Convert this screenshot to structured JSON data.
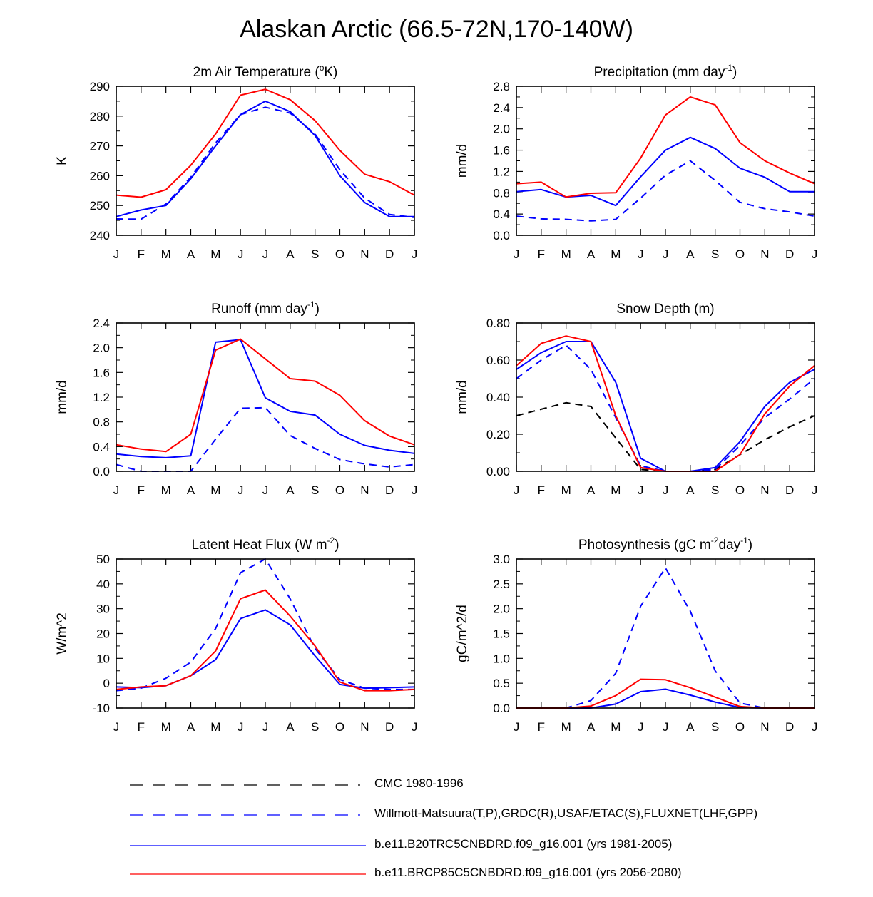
{
  "title": "Alaskan Arctic (66.5-72N,170-140W)",
  "months": [
    "J",
    "F",
    "M",
    "A",
    "M",
    "J",
    "J",
    "A",
    "S",
    "O",
    "N",
    "D",
    "J"
  ],
  "legend": [
    {
      "label": "CMC 1980-1996",
      "color": "#000000",
      "dash": true
    },
    {
      "label": "Willmott-Matsuura(T,P),GRDC(R),USAF/ETAC(S),FLUXNET(LHF,GPP)",
      "color": "#0000ff",
      "dash": true
    },
    {
      "label": "b.e11.B20TRC5CNBDRD.f09_g16.001 (yrs 1981-2005)",
      "color": "#0000ff",
      "dash": false
    },
    {
      "label": "b.e11.BRCP85C5CNBDRD.f09_g16.001 (yrs 2056-2080)",
      "color": "#ff0000",
      "dash": false
    }
  ],
  "chart_data": [
    {
      "type": "line",
      "title_parts": [
        "2m Air Temperature (",
        "o",
        "K)"
      ],
      "ylabel": "K",
      "ylim": [
        240,
        290
      ],
      "yticks": [
        "240",
        "250",
        "260",
        "270",
        "280",
        "290"
      ],
      "series": [
        {
          "name": "Willmott-Matsuura",
          "color": "#0000ff",
          "dash": true,
          "values": [
            245.5,
            245.4,
            250.5,
            259.5,
            271,
            280.5,
            283,
            281,
            274,
            262,
            252.5,
            247,
            246
          ]
        },
        {
          "name": "b.e11.B20TRC5CNBDRD (1981-2005)",
          "color": "#0000ff",
          "dash": false,
          "values": [
            246.3,
            248.5,
            250,
            259,
            270,
            280.5,
            285,
            281.5,
            273.5,
            260,
            251,
            246.3,
            246.3
          ]
        },
        {
          "name": "b.e11.BRCP85C5CNBDRD (2056-2080)",
          "color": "#ff0000",
          "dash": false,
          "values": [
            253.5,
            252.8,
            255.3,
            263.5,
            274,
            287,
            289,
            285.5,
            278.5,
            268.5,
            260.5,
            258,
            253.5
          ]
        }
      ]
    },
    {
      "type": "line",
      "title_parts": [
        "Precipitation (mm day",
        "-1",
        ")"
      ],
      "ylabel": "mm/d",
      "ylim": [
        0,
        2.8
      ],
      "yticks": [
        "0.0",
        "0.4",
        "0.8",
        "1.2",
        "1.6",
        "2.0",
        "2.4",
        "2.8"
      ],
      "series": [
        {
          "name": "Willmott-Matsuura",
          "color": "#0000ff",
          "dash": true,
          "values": [
            0.36,
            0.31,
            0.3,
            0.27,
            0.3,
            0.7,
            1.13,
            1.4,
            1.03,
            0.62,
            0.5,
            0.44,
            0.36
          ]
        },
        {
          "name": "b.e11.B20TRC5CNBDRD (1981-2005)",
          "color": "#0000ff",
          "dash": false,
          "values": [
            0.82,
            0.86,
            0.72,
            0.75,
            0.56,
            1.1,
            1.6,
            1.84,
            1.63,
            1.26,
            1.09,
            0.82,
            0.82
          ]
        },
        {
          "name": "b.e11.BRCP85C5CNBDRD (2056-2080)",
          "color": "#ff0000",
          "dash": false,
          "values": [
            0.97,
            1.0,
            0.72,
            0.79,
            0.8,
            1.45,
            2.26,
            2.6,
            2.45,
            1.74,
            1.4,
            1.17,
            0.97
          ]
        }
      ]
    },
    {
      "type": "line",
      "title_parts": [
        "Runoff (mm day",
        "-1",
        ")"
      ],
      "ylabel": "mm/d",
      "ylim": [
        0,
        2.4
      ],
      "yticks": [
        "0.0",
        "0.4",
        "0.8",
        "1.2",
        "1.6",
        "2.0",
        "2.4"
      ],
      "series": [
        {
          "name": "GRDC",
          "color": "#0000ff",
          "dash": true,
          "values": [
            0.11,
            0.0,
            0.0,
            0.0,
            0.52,
            1.02,
            1.03,
            0.58,
            0.37,
            0.19,
            0.12,
            0.07,
            0.11
          ]
        },
        {
          "name": "b.e11.B20TRC5CNBDRD (1981-2005)",
          "color": "#0000ff",
          "dash": false,
          "values": [
            0.28,
            0.24,
            0.22,
            0.25,
            2.09,
            2.13,
            1.19,
            0.97,
            0.91,
            0.6,
            0.42,
            0.34,
            0.29
          ]
        },
        {
          "name": "b.e11.BRCP85C5CNBDRD (2056-2080)",
          "color": "#ff0000",
          "dash": false,
          "values": [
            0.43,
            0.36,
            0.32,
            0.6,
            1.96,
            2.14,
            1.82,
            1.5,
            1.46,
            1.23,
            0.82,
            0.57,
            0.43
          ]
        }
      ]
    },
    {
      "type": "line",
      "title_parts": [
        "Snow Depth (m)"
      ],
      "ylabel": "mm/d",
      "ylim": [
        0,
        0.8
      ],
      "yticks": [
        "0.00",
        "0.20",
        "0.40",
        "0.60",
        "0.80"
      ],
      "series": [
        {
          "name": "CMC 1980-1996",
          "color": "#000000",
          "dash": true,
          "values": [
            0.3,
            0.335,
            0.37,
            0.35,
            0.18,
            0.01,
            0.0,
            0.0,
            0.01,
            0.09,
            0.17,
            0.24,
            0.3
          ]
        },
        {
          "name": "USAF/ETAC",
          "color": "#0000ff",
          "dash": true,
          "values": [
            0.5,
            0.6,
            0.68,
            0.55,
            0.29,
            0.03,
            0.0,
            0.0,
            0.01,
            0.14,
            0.29,
            0.39,
            0.5
          ]
        },
        {
          "name": "b.e11.B20TRC5CNBDRD (1981-2005)",
          "color": "#0000ff",
          "dash": false,
          "values": [
            0.55,
            0.64,
            0.7,
            0.7,
            0.48,
            0.07,
            0.0,
            0.0,
            0.02,
            0.16,
            0.35,
            0.48,
            0.55
          ]
        },
        {
          "name": "b.e11.BRCP85C5CNBDRD (2056-2080)",
          "color": "#ff0000",
          "dash": false,
          "values": [
            0.57,
            0.69,
            0.73,
            0.7,
            0.3,
            0.02,
            0.0,
            0.0,
            0.0,
            0.09,
            0.31,
            0.46,
            0.57
          ]
        }
      ]
    },
    {
      "type": "line",
      "title_parts": [
        "Latent Heat Flux (W m",
        "-2",
        ")"
      ],
      "ylabel": "W/m^2",
      "ylim": [
        -10,
        50
      ],
      "yticks": [
        "-10",
        "0",
        "10",
        "20",
        "30",
        "40",
        "50"
      ],
      "series": [
        {
          "name": "FLUXNET",
          "color": "#0000ff",
          "dash": true,
          "values": [
            -3,
            -2,
            2,
            8.5,
            22,
            44.5,
            50,
            34,
            14,
            1.5,
            -2,
            -2.5,
            -2.5
          ]
        },
        {
          "name": "b.e11.B20TRC5CNBDRD (1981-2005)",
          "color": "#0000ff",
          "dash": false,
          "values": [
            -1.5,
            -1.8,
            -1,
            3,
            9.5,
            26,
            29.5,
            23.5,
            11,
            -0.5,
            -2,
            -1.8,
            -1.5
          ]
        },
        {
          "name": "b.e11.BRCP85C5CNBDRD (2056-2080)",
          "color": "#ff0000",
          "dash": false,
          "values": [
            -2.5,
            -1.5,
            -1,
            3,
            13,
            34,
            37.5,
            27,
            15,
            0.5,
            -3,
            -3,
            -2.5
          ]
        }
      ]
    },
    {
      "type": "line",
      "title_parts": [
        "Photosynthesis (gC m",
        "-2",
        "day",
        "-1",
        ")"
      ],
      "ylabel": "gC/m^2/d",
      "ylim": [
        0,
        3
      ],
      "yticks": [
        "0.0",
        "0.5",
        "1.0",
        "1.5",
        "2.0",
        "2.5",
        "3.0"
      ],
      "series": [
        {
          "name": "FLUXNET",
          "color": "#0000ff",
          "dash": true,
          "values": [
            0,
            0,
            0,
            0.15,
            0.7,
            2.05,
            2.82,
            1.95,
            0.75,
            0.1,
            0,
            0,
            0
          ]
        },
        {
          "name": "b.e11.B20TRC5CNBDRD (1981-2005)",
          "color": "#0000ff",
          "dash": false,
          "values": [
            0,
            0,
            0,
            0,
            0.08,
            0.33,
            0.38,
            0.26,
            0.12,
            0.01,
            0,
            0,
            0
          ]
        },
        {
          "name": "b.e11.BRCP85C5CNBDRD (2056-2080)",
          "color": "#ff0000",
          "dash": false,
          "values": [
            0,
            0,
            0,
            0.04,
            0.25,
            0.58,
            0.57,
            0.41,
            0.22,
            0.03,
            0,
            0,
            0
          ]
        }
      ]
    }
  ]
}
